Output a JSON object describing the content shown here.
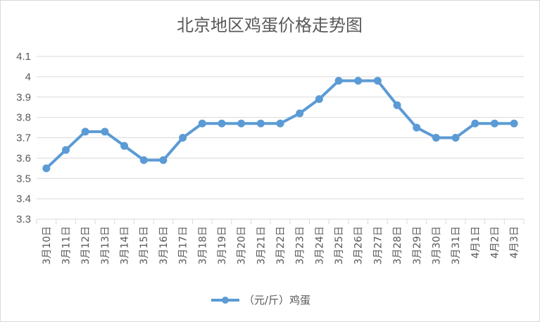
{
  "chart_data": {
    "type": "line",
    "title": "北京地区鸡蛋价格走势图",
    "categories": [
      "3月10日",
      "3月11日",
      "3月12日",
      "3月13日",
      "3月14日",
      "3月15日",
      "3月16日",
      "3月17日",
      "3月18日",
      "3月19日",
      "3月20日",
      "3月21日",
      "3月22日",
      "3月23日",
      "3月24日",
      "3月25日",
      "3月26日",
      "3月27日",
      "3月28日",
      "3月29日",
      "3月30日",
      "3月31日",
      "4月1日",
      "4月2日",
      "4月3日"
    ],
    "series": [
      {
        "name": "（元/斤）鸡蛋",
        "values": [
          3.55,
          3.64,
          3.73,
          3.73,
          3.66,
          3.59,
          3.59,
          3.7,
          3.77,
          3.77,
          3.77,
          3.77,
          3.77,
          3.82,
          3.89,
          3.98,
          3.98,
          3.98,
          3.86,
          3.75,
          3.7,
          3.7,
          3.77,
          3.77,
          3.77
        ]
      }
    ],
    "yticks": [
      "3.3",
      "3.4",
      "3.5",
      "3.6",
      "3.7",
      "3.8",
      "3.9",
      "4",
      "4.1"
    ],
    "ylim": [
      3.3,
      4.1
    ],
    "grid": true,
    "legend": "bottom",
    "colors": {
      "line": "#5B9BD5",
      "grid": "#D9D9D9",
      "text": "#595959"
    }
  }
}
